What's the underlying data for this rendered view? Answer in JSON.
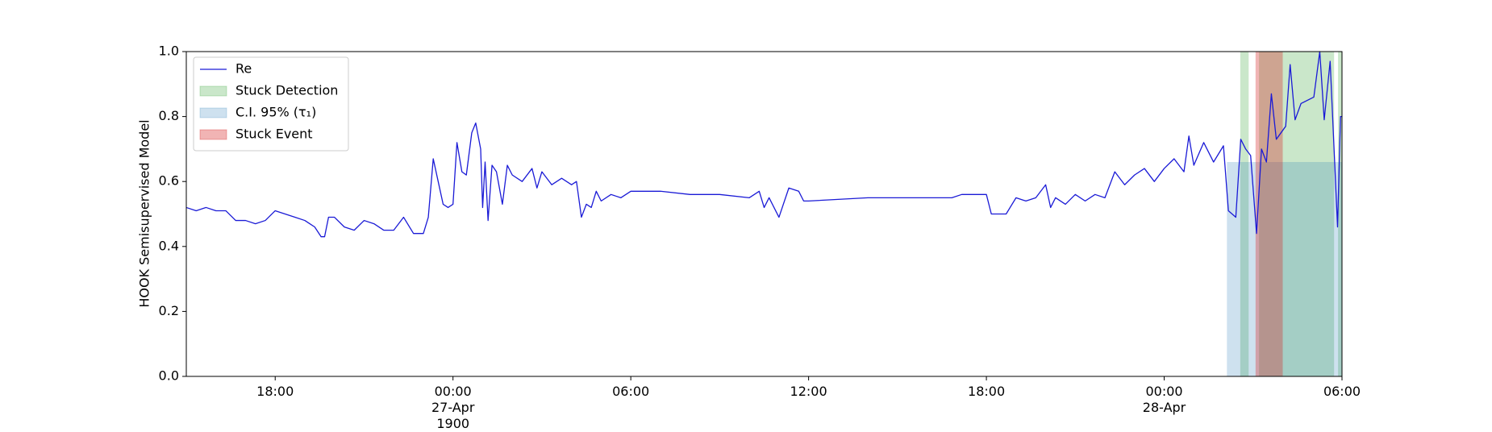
{
  "chart_data": {
    "type": "line",
    "ylabel": "HOOK Semisupervised Model",
    "xlim": [
      "1900-04-26 15:00",
      "1900-04-28 06:00"
    ],
    "xticks": [
      {
        "value": "1900-04-26 18:00",
        "label": "18:00"
      },
      {
        "value": "1900-04-27 00:00",
        "label": "00:00\n27-Apr\n1900"
      },
      {
        "value": "1900-04-27 06:00",
        "label": "06:00"
      },
      {
        "value": "1900-04-27 12:00",
        "label": "12:00"
      },
      {
        "value": "1900-04-27 18:00",
        "label": "18:00"
      },
      {
        "value": "1900-04-28 00:00",
        "label": "00:00\n28-Apr"
      },
      {
        "value": "1900-04-28 06:00",
        "label": "06:00"
      }
    ],
    "ylim": [
      0,
      1
    ],
    "yticks": [
      {
        "value": 0,
        "label": "0.0"
      },
      {
        "value": 0.2,
        "label": "0.2"
      },
      {
        "value": 0.4,
        "label": "0.4"
      },
      {
        "value": 0.6,
        "label": "0.6"
      },
      {
        "value": 0.8,
        "label": "0.8"
      },
      {
        "value": 1,
        "label": "1.0"
      }
    ],
    "legend": "upper left",
    "x": [
      "1900-04-26 15:00",
      "1900-04-26 15:20",
      "1900-04-26 15:40",
      "1900-04-26 16:00",
      "1900-04-26 16:20",
      "1900-04-26 16:40",
      "1900-04-26 17:00",
      "1900-04-26 17:20",
      "1900-04-26 17:40",
      "1900-04-26 18:00",
      "1900-04-26 18:20",
      "1900-04-26 18:40",
      "1900-04-26 19:00",
      "1900-04-26 19:20",
      "1900-04-26 19:33",
      "1900-04-26 19:40",
      "1900-04-26 19:48",
      "1900-04-26 20:00",
      "1900-04-26 20:20",
      "1900-04-26 20:40",
      "1900-04-26 21:00",
      "1900-04-26 21:20",
      "1900-04-26 21:40",
      "1900-04-26 22:00",
      "1900-04-26 22:20",
      "1900-04-26 22:40",
      "1900-04-26 23:00",
      "1900-04-26 23:10",
      "1900-04-26 23:20",
      "1900-04-26 23:30",
      "1900-04-26 23:40",
      "1900-04-26 23:50",
      "1900-04-27 00:00",
      "1900-04-27 00:08",
      "1900-04-27 00:18",
      "1900-04-27 00:27",
      "1900-04-27 00:38",
      "1900-04-27 00:46",
      "1900-04-27 00:56",
      "1900-04-27 01:00",
      "1900-04-27 01:05",
      "1900-04-27 01:11",
      "1900-04-27 01:19",
      "1900-04-27 01:28",
      "1900-04-27 01:40",
      "1900-04-27 01:50",
      "1900-04-27 02:00",
      "1900-04-27 02:20",
      "1900-04-27 02:40",
      "1900-04-27 02:50",
      "1900-04-27 03:00",
      "1900-04-27 03:20",
      "1900-04-27 03:40",
      "1900-04-27 04:00",
      "1900-04-27 04:10",
      "1900-04-27 04:20",
      "1900-04-27 04:30",
      "1900-04-27 04:40",
      "1900-04-27 04:50",
      "1900-04-27 05:00",
      "1900-04-27 05:20",
      "1900-04-27 05:40",
      "1900-04-27 06:00",
      "1900-04-27 07:00",
      "1900-04-27 08:00",
      "1900-04-27 09:00",
      "1900-04-27 10:00",
      "1900-04-27 10:20",
      "1900-04-27 10:30",
      "1900-04-27 10:40",
      "1900-04-27 11:00",
      "1900-04-27 11:20",
      "1900-04-27 11:40",
      "1900-04-27 11:50",
      "1900-04-27 12:00",
      "1900-04-27 14:00",
      "1900-04-27 16:00",
      "1900-04-27 16:50",
      "1900-04-27 17:10",
      "1900-04-27 17:50",
      "1900-04-27 18:00",
      "1900-04-27 18:10",
      "1900-04-27 18:40",
      "1900-04-27 19:00",
      "1900-04-27 19:20",
      "1900-04-27 19:40",
      "1900-04-27 20:00",
      "1900-04-27 20:10",
      "1900-04-27 20:20",
      "1900-04-27 20:40",
      "1900-04-27 21:00",
      "1900-04-27 21:20",
      "1900-04-27 21:40",
      "1900-04-27 22:00",
      "1900-04-27 22:20",
      "1900-04-27 22:40",
      "1900-04-27 23:00",
      "1900-04-27 23:20",
      "1900-04-27 23:40",
      "1900-04-28 00:00",
      "1900-04-28 00:20",
      "1900-04-28 00:40",
      "1900-04-28 00:50",
      "1900-04-28 01:00",
      "1900-04-28 01:20",
      "1900-04-28 01:40",
      "1900-04-28 02:00",
      "1900-04-28 02:10",
      "1900-04-28 02:25",
      "1900-04-28 02:35",
      "1900-04-28 02:45",
      "1900-04-28 02:55",
      "1900-04-28 03:07",
      "1900-04-28 03:17",
      "1900-04-28 03:27",
      "1900-04-28 03:37",
      "1900-04-28 03:47",
      "1900-04-28 04:06",
      "1900-04-28 04:15",
      "1900-04-28 04:25",
      "1900-04-28 04:37",
      "1900-04-28 05:03",
      "1900-04-28 05:15",
      "1900-04-28 05:24",
      "1900-04-28 05:36",
      "1900-04-28 05:51",
      "1900-04-28 05:57",
      "1900-04-28 06:00"
    ],
    "series": [
      {
        "name": "Re",
        "color": "#1a1ad6",
        "values": [
          0.52,
          0.51,
          0.52,
          0.51,
          0.51,
          0.48,
          0.48,
          0.47,
          0.48,
          0.51,
          0.5,
          0.49,
          0.48,
          0.46,
          0.43,
          0.43,
          0.49,
          0.49,
          0.46,
          0.45,
          0.48,
          0.47,
          0.45,
          0.45,
          0.49,
          0.44,
          0.44,
          0.49,
          0.67,
          0.6,
          0.53,
          0.52,
          0.53,
          0.72,
          0.63,
          0.62,
          0.75,
          0.78,
          0.7,
          0.52,
          0.66,
          0.48,
          0.65,
          0.63,
          0.53,
          0.65,
          0.62,
          0.6,
          0.64,
          0.58,
          0.63,
          0.59,
          0.61,
          0.59,
          0.6,
          0.49,
          0.53,
          0.52,
          0.57,
          0.54,
          0.56,
          0.55,
          0.57,
          0.57,
          0.56,
          0.56,
          0.55,
          0.57,
          0.52,
          0.55,
          0.49,
          0.58,
          0.57,
          0.54,
          0.54,
          0.55,
          0.55,
          0.55,
          0.56,
          0.56,
          0.56,
          0.5,
          0.5,
          0.55,
          0.54,
          0.55,
          0.59,
          0.52,
          0.55,
          0.53,
          0.56,
          0.54,
          0.56,
          0.55,
          0.63,
          0.59,
          0.62,
          0.64,
          0.6,
          0.64,
          0.67,
          0.63,
          0.74,
          0.65,
          0.72,
          0.66,
          0.71,
          0.51,
          0.49,
          0.73,
          0.7,
          0.68,
          0.44,
          0.7,
          0.66,
          0.87,
          0.73,
          0.77,
          0.96,
          0.79,
          0.84,
          0.86,
          1.0,
          0.79,
          0.97,
          0.46,
          0.8,
          0.8
        ]
      }
    ],
    "spans": [
      {
        "name": "Stuck Detection",
        "color": "#2ca02c",
        "alpha": 0.25,
        "ranges": [
          [
            "1900-04-28 02:34",
            "1900-04-28 02:51"
          ],
          [
            "1900-04-28 03:12",
            "1900-04-28 05:44"
          ],
          [
            "1900-04-28 05:52",
            "1900-04-28 06:00"
          ]
        ]
      },
      {
        "name": "C.I. 95% (τ₁)",
        "color": "#1f77b4",
        "alpha": 0.22,
        "ymax": 0.66,
        "ranges": [
          [
            "1900-04-28 02:07",
            "1900-04-28 06:00"
          ]
        ]
      },
      {
        "name": "Stuck Event",
        "color": "#d62728",
        "alpha": 0.35,
        "ranges": [
          [
            "1900-04-28 03:05",
            "1900-04-28 04:00"
          ]
        ]
      }
    ]
  }
}
